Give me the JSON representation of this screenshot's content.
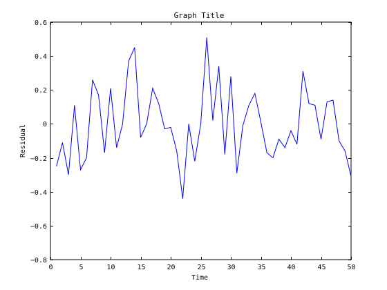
{
  "chart_data": {
    "type": "line",
    "title": "Graph Title",
    "xlabel": "Time",
    "ylabel": "Residual",
    "xlim": [
      0,
      50
    ],
    "ylim": [
      -0.8,
      0.6
    ],
    "grid": false,
    "x_ticks": [
      0,
      5,
      10,
      15,
      20,
      25,
      30,
      35,
      40,
      45,
      50
    ],
    "y_ticks": [
      -0.8,
      -0.6,
      -0.4,
      -0.2,
      0,
      0.2,
      0.4,
      0.6
    ],
    "x_tick_labels": [
      "0",
      "5",
      "10",
      "15",
      "20",
      "25",
      "30",
      "35",
      "40",
      "45",
      "50"
    ],
    "y_tick_labels": [
      "−0.8",
      "−0.6",
      "−0.4",
      "−0.2",
      "0",
      "0.2",
      "0.4",
      "0.6"
    ],
    "colors": {
      "series": "#0000ff",
      "axes": "#000000"
    },
    "series": [
      {
        "x": [
          1,
          2,
          3,
          4,
          5,
          6,
          7,
          8,
          9,
          10,
          11,
          12,
          13,
          14,
          15,
          16,
          17,
          18,
          19,
          20,
          21,
          22,
          23,
          24,
          25,
          26,
          27,
          28,
          29,
          30,
          31,
          32,
          33,
          34,
          35,
          36,
          37,
          38,
          39,
          40,
          41,
          42,
          43,
          44,
          45,
          46,
          47,
          48,
          49,
          50
        ],
        "values": [
          -0.25,
          -0.11,
          -0.3,
          0.11,
          -0.27,
          -0.2,
          0.26,
          0.17,
          -0.17,
          0.21,
          -0.14,
          0.0,
          0.37,
          0.45,
          -0.08,
          0.0,
          0.21,
          0.12,
          -0.03,
          -0.02,
          -0.16,
          -0.44,
          0.0,
          -0.22,
          0.0,
          0.51,
          0.02,
          0.34,
          -0.18,
          0.28,
          -0.29,
          -0.01,
          0.11,
          0.18,
          0.01,
          -0.17,
          -0.2,
          -0.09,
          -0.14,
          -0.04,
          -0.12,
          0.31,
          0.12,
          0.11,
          -0.09,
          0.13,
          0.14,
          -0.1,
          -0.16,
          -0.31
        ]
      }
    ]
  }
}
